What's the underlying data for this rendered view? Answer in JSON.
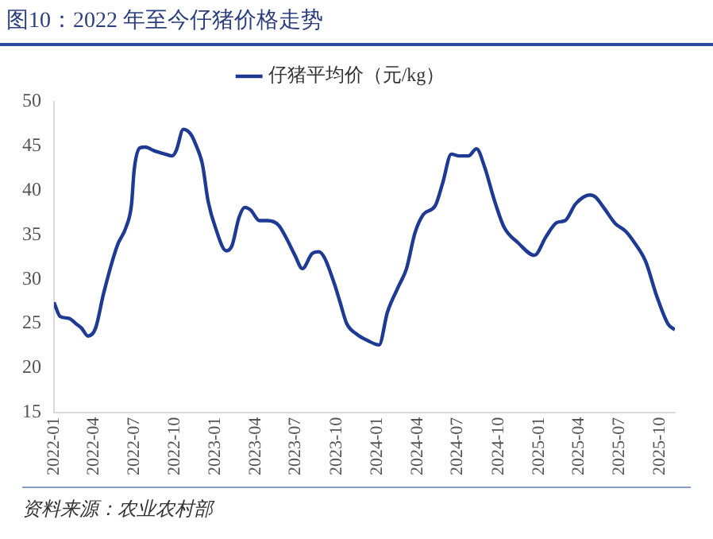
{
  "chart_data": {
    "type": "line",
    "title": "图10：2022 年至今仔猪价格走势",
    "annotations": [
      "资料来源：农业农村部"
    ],
    "x": [
      "2022-01-01",
      "2022-01-15",
      "2022-02-03",
      "2022-02-22",
      "2022-03-04",
      "2022-03-19",
      "2022-04-05",
      "2022-04-23",
      "2022-05-24",
      "2022-06-13",
      "2022-06-25",
      "2022-07-01",
      "2022-07-14",
      "2022-07-26",
      "2022-08-14",
      "2022-09-09",
      "2022-09-25",
      "2022-10-04",
      "2022-10-20",
      "2022-11-05",
      "2022-11-17",
      "2022-12-02",
      "2022-12-15",
      "2022-12-31",
      "2023-01-25",
      "2023-02-07",
      "2023-02-23",
      "2023-03-08",
      "2023-03-21",
      "2023-04-10",
      "2023-04-28",
      "2023-05-23",
      "2023-06-11",
      "2023-06-29",
      "2023-07-16",
      "2023-08-07",
      "2023-08-22",
      "2023-09-04",
      "2023-09-26",
      "2023-10-09",
      "2023-10-24",
      "2023-11-16",
      "2023-12-10",
      "2024-01-05",
      "2024-01-24",
      "2024-02-18",
      "2024-03-07",
      "2024-03-26",
      "2024-04-14",
      "2024-05-11",
      "2024-05-28",
      "2024-06-16",
      "2024-07-04",
      "2024-07-25",
      "2024-08-12",
      "2024-08-30",
      "2024-09-22",
      "2024-10-13",
      "2024-11-14",
      "2024-12-21",
      "2025-01-16",
      "2025-02-10",
      "2025-02-28",
      "2025-03-24",
      "2025-04-25",
      "2025-05-07",
      "2025-05-26",
      "2025-06-21",
      "2025-07-15",
      "2025-08-04",
      "2025-08-29",
      "2025-09-23",
      "2025-10-18",
      "2025-11-03"
    ],
    "series": [
      {
        "name": "仔猪平均价（元/kg）",
        "color": "#1f3a93",
        "values": [
          27.4,
          25.8,
          25.6,
          24.9,
          24.5,
          23.6,
          24.5,
          28.4,
          33.8,
          35.9,
          38.4,
          42.3,
          44.8,
          44.9,
          44.5,
          44.1,
          43.9,
          44.5,
          46.9,
          46.4,
          45.2,
          43.0,
          38.8,
          35.9,
          33.2,
          33.8,
          37.0,
          38.1,
          37.8,
          36.6,
          36.6,
          36.1,
          34.5,
          32.7,
          31.2,
          32.9,
          33.1,
          32.4,
          29.5,
          27.4,
          25.0,
          23.8,
          23.1,
          22.6,
          26.3,
          29.2,
          31.2,
          35.2,
          37.3,
          38.3,
          40.9,
          44.1,
          43.9,
          43.9,
          44.7,
          42.7,
          38.8,
          35.9,
          34.1,
          32.7,
          34.8,
          36.4,
          36.6,
          38.5,
          39.5,
          39.3,
          38.1,
          36.3,
          35.4,
          34.1,
          32.0,
          28.1,
          25.0,
          24.3
        ]
      }
    ],
    "xlim": [
      "2022-01-01",
      "2025-11-03"
    ],
    "xticks": [
      "2022-01",
      "2022-04",
      "2022-07",
      "2022-10",
      "2023-01",
      "2023-04",
      "2023-07",
      "2023-10",
      "2024-01",
      "2024-04",
      "2024-07",
      "2024-10",
      "2025-01",
      "2025-04",
      "2025-07",
      "2025-10"
    ],
    "ylim": [
      15,
      50
    ],
    "yticks": [
      15,
      20,
      25,
      30,
      35,
      40,
      45,
      50
    ],
    "grid": false,
    "legend": "top",
    "marker": "none",
    "line_style": "solid"
  }
}
